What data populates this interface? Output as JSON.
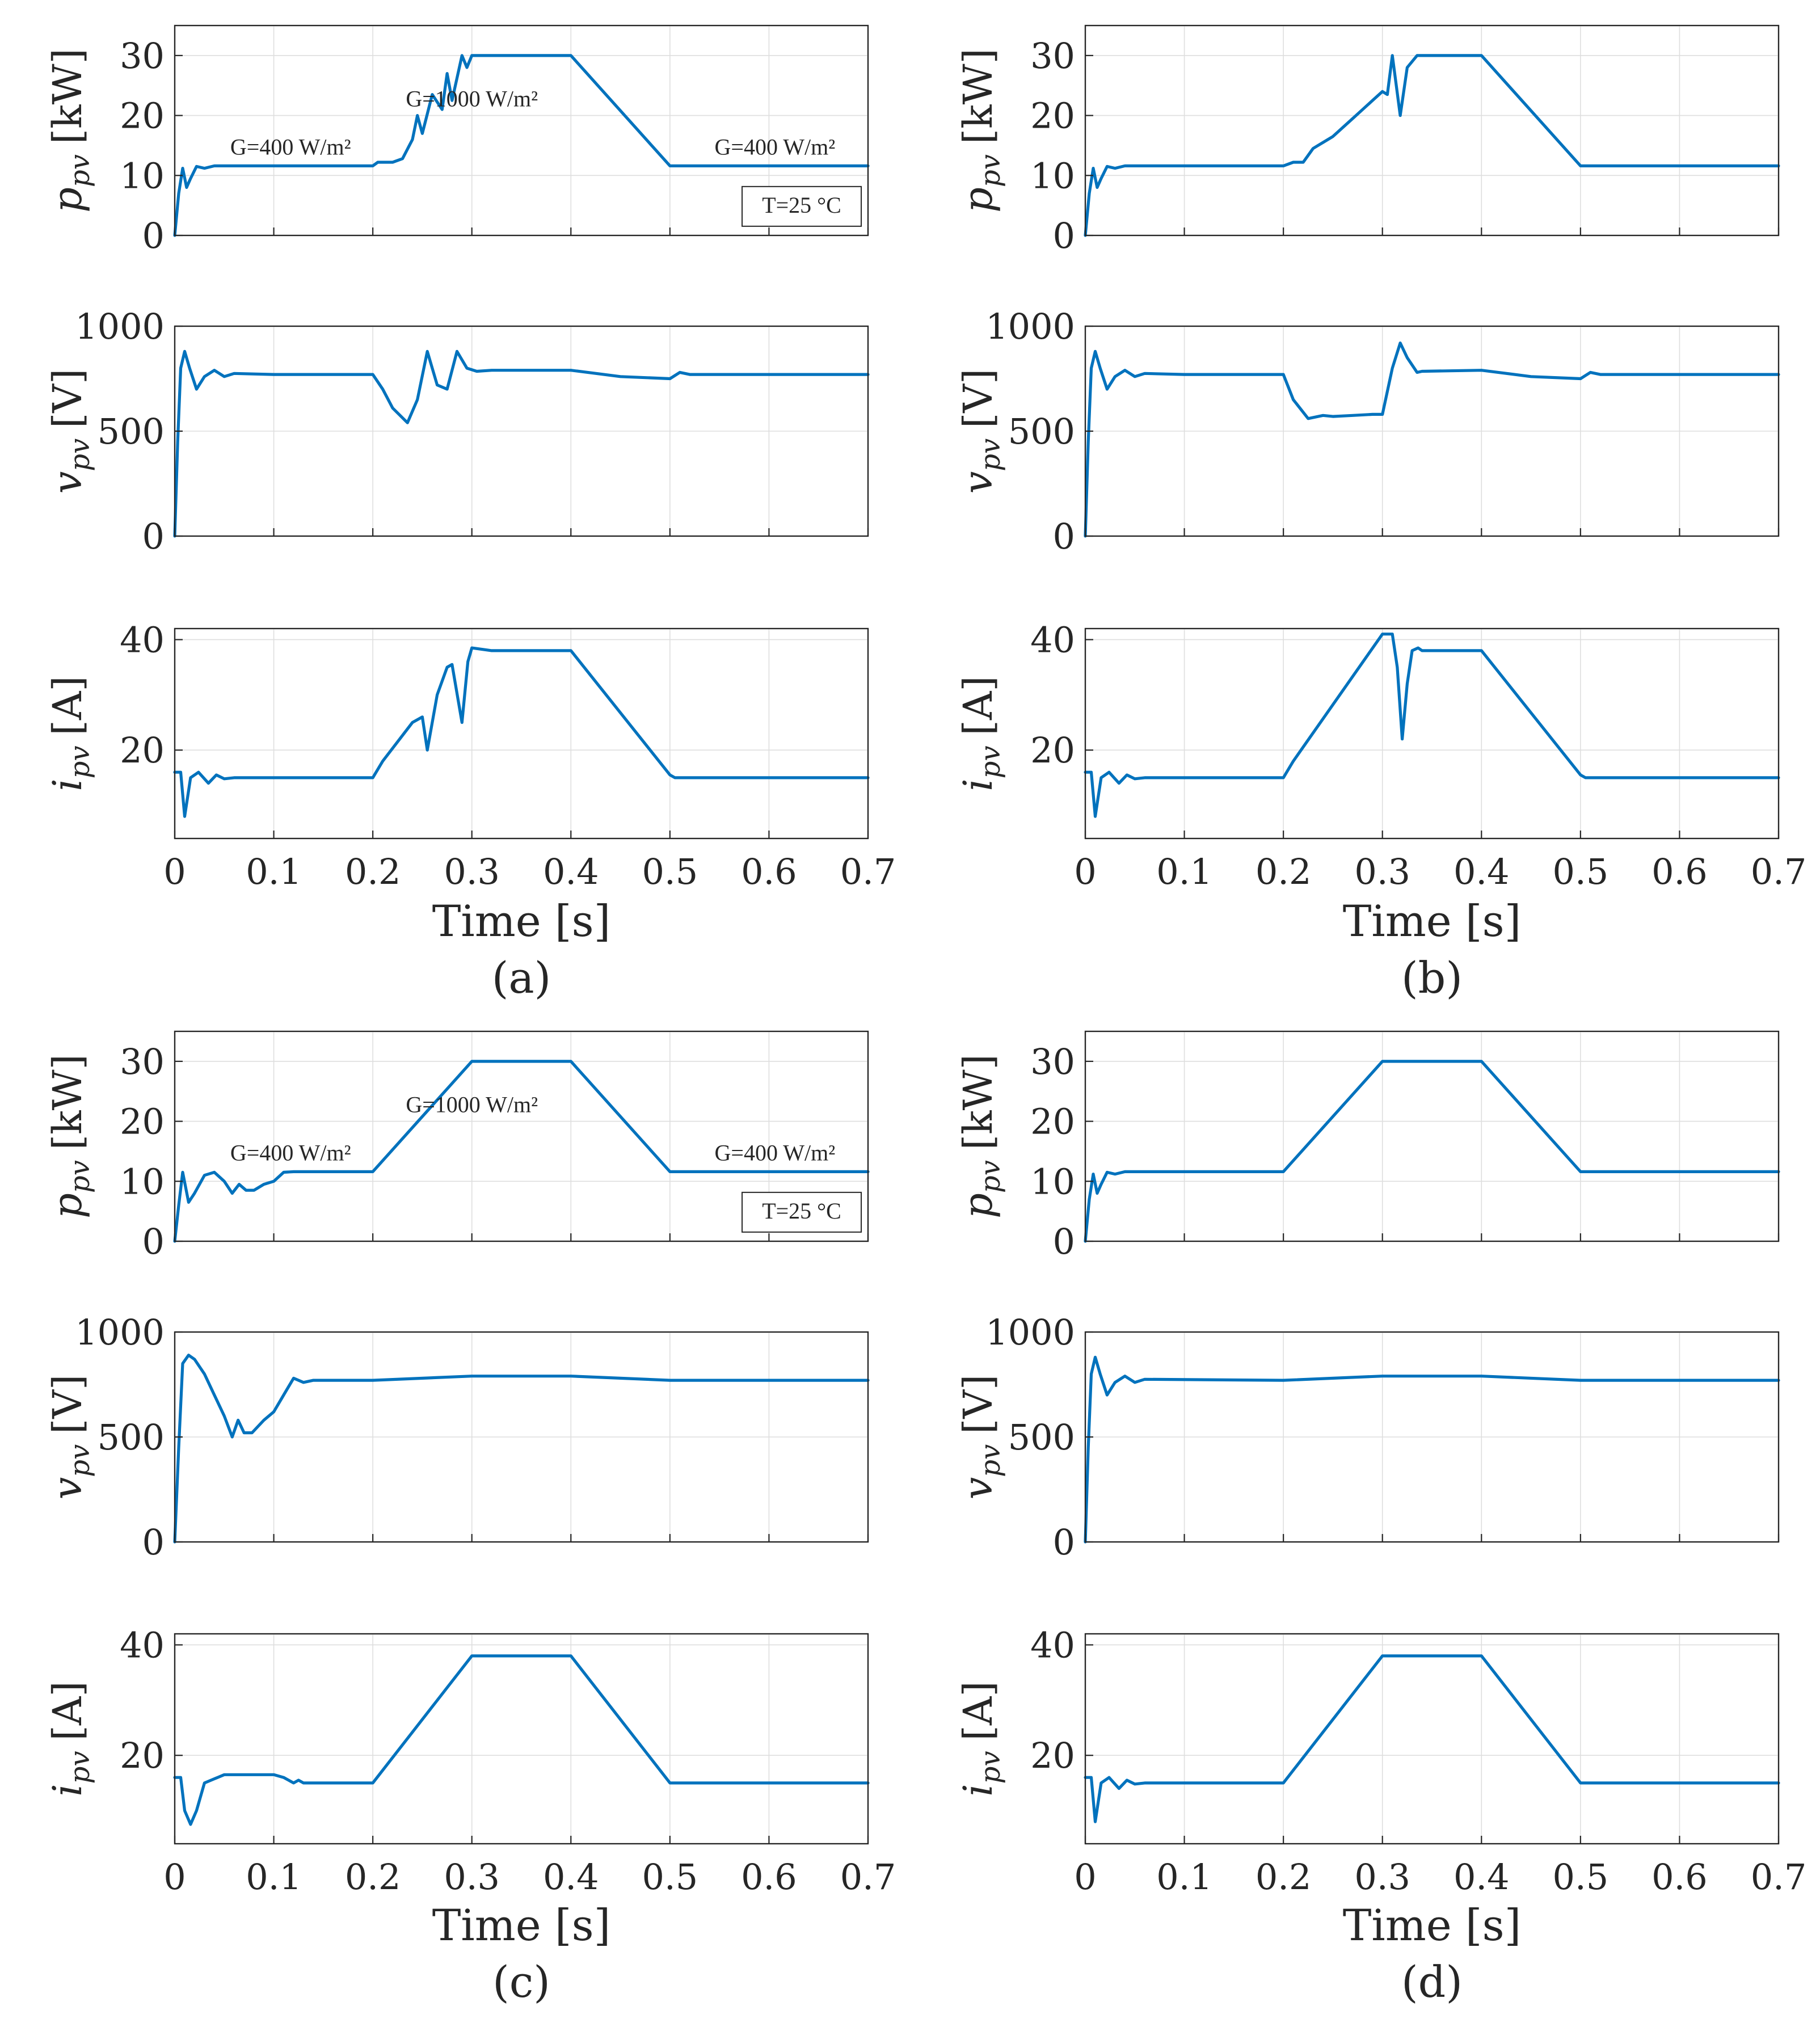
{
  "figure": {
    "captions": [
      "(a)",
      "(b)",
      "(c)",
      "(d)"
    ],
    "xlabel": "Time [s]"
  },
  "colors": {
    "series": "#0072BD",
    "axis": "#262626",
    "grid": "#dedede"
  },
  "chart_data": [
    {
      "panel": "(a)",
      "subplots": [
        {
          "type": "line",
          "ylabel_main": "p",
          "ylabel_sub": "pv",
          "ylabel_unit": "[kW]",
          "ylim": [
            0,
            35
          ],
          "yticks": [
            0,
            10,
            20,
            30
          ],
          "xlim": [
            0,
            0.7
          ],
          "xticks": [
            0,
            0.1,
            0.2,
            0.3,
            0.4,
            0.5,
            0.6,
            0.7
          ],
          "show_xtick_labels": false,
          "annotations": [
            "G=400 W/m²",
            "G=1000 W/m²",
            "G=400 W/m²",
            "T=25 °C"
          ],
          "x": [
            0,
            0.004,
            0.008,
            0.012,
            0.016,
            0.022,
            0.03,
            0.04,
            0.06,
            0.1,
            0.2,
            0.205,
            0.22,
            0.23,
            0.24,
            0.245,
            0.25,
            0.26,
            0.27,
            0.275,
            0.28,
            0.29,
            0.295,
            0.3,
            0.4,
            0.5,
            0.7
          ],
          "y": [
            0,
            7,
            11.2,
            8,
            9.5,
            11.5,
            11.2,
            11.6,
            11.6,
            11.6,
            11.6,
            12.2,
            12.2,
            12.8,
            16,
            20,
            17,
            23.5,
            21,
            27,
            22.5,
            30,
            28,
            30,
            30,
            11.6,
            11.6
          ]
        },
        {
          "type": "line",
          "ylabel_main": "v",
          "ylabel_sub": "pv",
          "ylabel_unit": "[V]",
          "ylim": [
            0,
            1000
          ],
          "yticks": [
            0,
            500,
            1000
          ],
          "xlim": [
            0,
            0.7
          ],
          "xticks": [
            0,
            0.1,
            0.2,
            0.3,
            0.4,
            0.5,
            0.6,
            0.7
          ],
          "show_xtick_labels": false,
          "x": [
            0,
            0.003,
            0.006,
            0.01,
            0.015,
            0.022,
            0.03,
            0.04,
            0.05,
            0.06,
            0.1,
            0.2,
            0.21,
            0.22,
            0.235,
            0.245,
            0.255,
            0.265,
            0.275,
            0.285,
            0.295,
            0.305,
            0.32,
            0.4,
            0.45,
            0.5,
            0.51,
            0.52,
            0.7
          ],
          "y": [
            0,
            450,
            800,
            880,
            800,
            700,
            760,
            790,
            760,
            775,
            770,
            770,
            700,
            610,
            540,
            650,
            880,
            720,
            700,
            880,
            800,
            785,
            790,
            790,
            760,
            750,
            780,
            770,
            770
          ]
        },
        {
          "type": "line",
          "ylabel_main": "i",
          "ylabel_sub": "pv",
          "ylabel_unit": "[A]",
          "ylim": [
            4,
            42
          ],
          "yticks": [
            20,
            40
          ],
          "xlim": [
            0,
            0.7
          ],
          "xticks": [
            0,
            0.1,
            0.2,
            0.3,
            0.4,
            0.5,
            0.6,
            0.7
          ],
          "show_xtick_labels": true,
          "x": [
            0,
            0.006,
            0.01,
            0.016,
            0.024,
            0.034,
            0.042,
            0.05,
            0.06,
            0.2,
            0.21,
            0.24,
            0.25,
            0.255,
            0.265,
            0.275,
            0.28,
            0.29,
            0.296,
            0.3,
            0.32,
            0.4,
            0.5,
            0.505,
            0.7
          ],
          "y": [
            16,
            16,
            8,
            15,
            16,
            14,
            15.5,
            14.8,
            15,
            15,
            18,
            25,
            26,
            20,
            30,
            35,
            35.5,
            25,
            36,
            38.5,
            38,
            38,
            15.5,
            15,
            15
          ]
        }
      ]
    },
    {
      "panel": "(b)",
      "subplots": [
        {
          "type": "line",
          "ylabel_main": "p",
          "ylabel_sub": "pv",
          "ylabel_unit": "[kW]",
          "ylim": [
            0,
            35
          ],
          "yticks": [
            0,
            10,
            20,
            30
          ],
          "xlim": [
            0,
            0.7
          ],
          "xticks": [
            0,
            0.1,
            0.2,
            0.3,
            0.4,
            0.5,
            0.6,
            0.7
          ],
          "show_xtick_labels": false,
          "x": [
            0,
            0.004,
            0.008,
            0.012,
            0.016,
            0.022,
            0.03,
            0.04,
            0.06,
            0.2,
            0.21,
            0.22,
            0.23,
            0.24,
            0.25,
            0.26,
            0.27,
            0.28,
            0.29,
            0.3,
            0.305,
            0.31,
            0.318,
            0.325,
            0.335,
            0.4,
            0.5,
            0.7
          ],
          "y": [
            0,
            7,
            11.2,
            8,
            9.5,
            11.5,
            11.2,
            11.6,
            11.6,
            11.6,
            12.2,
            12.2,
            14.5,
            15.5,
            16.5,
            18,
            19.5,
            21,
            22.5,
            24,
            23.5,
            30,
            20,
            28,
            30,
            30,
            11.6,
            11.6
          ]
        },
        {
          "type": "line",
          "ylabel_main": "v",
          "ylabel_sub": "pv",
          "ylabel_unit": "[V]",
          "ylim": [
            0,
            1000
          ],
          "yticks": [
            0,
            500,
            1000
          ],
          "xlim": [
            0,
            0.7
          ],
          "xticks": [
            0,
            0.1,
            0.2,
            0.3,
            0.4,
            0.5,
            0.6,
            0.7
          ],
          "show_xtick_labels": false,
          "x": [
            0,
            0.003,
            0.006,
            0.01,
            0.015,
            0.022,
            0.03,
            0.04,
            0.05,
            0.06,
            0.1,
            0.2,
            0.21,
            0.225,
            0.24,
            0.25,
            0.27,
            0.29,
            0.3,
            0.31,
            0.318,
            0.325,
            0.335,
            0.34,
            0.4,
            0.45,
            0.5,
            0.51,
            0.52,
            0.7
          ],
          "y": [
            0,
            450,
            800,
            880,
            800,
            700,
            760,
            790,
            760,
            775,
            770,
            770,
            650,
            560,
            575,
            570,
            575,
            580,
            580,
            800,
            920,
            850,
            780,
            785,
            790,
            760,
            750,
            780,
            770,
            770
          ]
        },
        {
          "type": "line",
          "ylabel_main": "i",
          "ylabel_sub": "pv",
          "ylabel_unit": "[A]",
          "ylim": [
            4,
            42
          ],
          "yticks": [
            20,
            40
          ],
          "xlim": [
            0,
            0.7
          ],
          "xticks": [
            0,
            0.1,
            0.2,
            0.3,
            0.4,
            0.5,
            0.6,
            0.7
          ],
          "show_xtick_labels": true,
          "x": [
            0,
            0.006,
            0.01,
            0.016,
            0.024,
            0.034,
            0.042,
            0.05,
            0.06,
            0.2,
            0.21,
            0.3,
            0.31,
            0.315,
            0.32,
            0.325,
            0.33,
            0.336,
            0.34,
            0.4,
            0.5,
            0.505,
            0.7
          ],
          "y": [
            16,
            16,
            8,
            15,
            16,
            14,
            15.5,
            14.8,
            15,
            15,
            18,
            41,
            41,
            35,
            22,
            32,
            38,
            38.5,
            38,
            38,
            15.5,
            15,
            15
          ]
        }
      ]
    },
    {
      "panel": "(c)",
      "subplots": [
        {
          "type": "line",
          "ylabel_main": "p",
          "ylabel_sub": "pv",
          "ylabel_unit": "[kW]",
          "ylim": [
            0,
            35
          ],
          "yticks": [
            0,
            10,
            20,
            30
          ],
          "xlim": [
            0,
            0.7
          ],
          "xticks": [
            0,
            0.1,
            0.2,
            0.3,
            0.4,
            0.5,
            0.6,
            0.7
          ],
          "show_xtick_labels": false,
          "annotations": [
            "G=400 W/m²",
            "G=1000 W/m²",
            "G=400 W/m²",
            "T=25 °C"
          ],
          "x": [
            0,
            0.004,
            0.008,
            0.014,
            0.02,
            0.03,
            0.04,
            0.05,
            0.058,
            0.065,
            0.072,
            0.08,
            0.09,
            0.1,
            0.11,
            0.12,
            0.13,
            0.2,
            0.3,
            0.4,
            0.5,
            0.7
          ],
          "y": [
            0,
            6,
            11.5,
            6.5,
            8,
            11,
            11.5,
            10,
            8,
            9.5,
            8.5,
            8.5,
            9.5,
            10,
            11.5,
            11.6,
            11.6,
            11.6,
            30,
            30,
            11.6,
            11.6
          ]
        },
        {
          "type": "line",
          "ylabel_main": "v",
          "ylabel_sub": "pv",
          "ylabel_unit": "[V]",
          "ylim": [
            0,
            1000
          ],
          "yticks": [
            0,
            500,
            1000
          ],
          "xlim": [
            0,
            0.7
          ],
          "xticks": [
            0,
            0.1,
            0.2,
            0.3,
            0.4,
            0.5,
            0.6,
            0.7
          ],
          "show_xtick_labels": false,
          "x": [
            0,
            0.004,
            0.008,
            0.014,
            0.02,
            0.03,
            0.04,
            0.05,
            0.058,
            0.064,
            0.07,
            0.078,
            0.09,
            0.1,
            0.11,
            0.12,
            0.13,
            0.14,
            0.2,
            0.3,
            0.4,
            0.5,
            0.7
          ],
          "y": [
            0,
            450,
            850,
            890,
            870,
            800,
            700,
            600,
            500,
            580,
            520,
            520,
            580,
            620,
            700,
            780,
            760,
            770,
            770,
            790,
            790,
            770,
            770
          ]
        },
        {
          "type": "line",
          "ylabel_main": "i",
          "ylabel_sub": "pv",
          "ylabel_unit": "[A]",
          "ylim": [
            4,
            42
          ],
          "yticks": [
            20,
            40
          ],
          "xlim": [
            0,
            0.7
          ],
          "xticks": [
            0,
            0.1,
            0.2,
            0.3,
            0.4,
            0.5,
            0.6,
            0.7
          ],
          "show_xtick_labels": true,
          "x": [
            0,
            0.006,
            0.01,
            0.016,
            0.022,
            0.03,
            0.05,
            0.1,
            0.11,
            0.12,
            0.125,
            0.13,
            0.2,
            0.3,
            0.4,
            0.5,
            0.7
          ],
          "y": [
            16,
            16,
            10,
            7.5,
            10,
            15,
            16.5,
            16.5,
            16,
            15,
            15.5,
            15,
            15,
            38,
            38,
            15,
            15
          ]
        }
      ]
    },
    {
      "panel": "(d)",
      "subplots": [
        {
          "type": "line",
          "ylabel_main": "p",
          "ylabel_sub": "pv",
          "ylabel_unit": "[kW]",
          "ylim": [
            0,
            35
          ],
          "yticks": [
            0,
            10,
            20,
            30
          ],
          "xlim": [
            0,
            0.7
          ],
          "xticks": [
            0,
            0.1,
            0.2,
            0.3,
            0.4,
            0.5,
            0.6,
            0.7
          ],
          "show_xtick_labels": false,
          "x": [
            0,
            0.004,
            0.008,
            0.012,
            0.016,
            0.022,
            0.03,
            0.04,
            0.06,
            0.2,
            0.3,
            0.4,
            0.5,
            0.7
          ],
          "y": [
            0,
            7,
            11.2,
            8,
            9.5,
            11.5,
            11.2,
            11.6,
            11.6,
            11.6,
            30,
            30,
            11.6,
            11.6
          ]
        },
        {
          "type": "line",
          "ylabel_main": "v",
          "ylabel_sub": "pv",
          "ylabel_unit": "[V]",
          "ylim": [
            0,
            1000
          ],
          "yticks": [
            0,
            500,
            1000
          ],
          "xlim": [
            0,
            0.7
          ],
          "xticks": [
            0,
            0.1,
            0.2,
            0.3,
            0.4,
            0.5,
            0.6,
            0.7
          ],
          "show_xtick_labels": false,
          "x": [
            0,
            0.003,
            0.006,
            0.01,
            0.015,
            0.022,
            0.03,
            0.04,
            0.05,
            0.06,
            0.2,
            0.3,
            0.4,
            0.5,
            0.7
          ],
          "y": [
            0,
            450,
            800,
            880,
            800,
            700,
            760,
            790,
            760,
            775,
            770,
            790,
            790,
            770,
            770
          ]
        },
        {
          "type": "line",
          "ylabel_main": "i",
          "ylabel_sub": "pv",
          "ylabel_unit": "[A]",
          "ylim": [
            4,
            42
          ],
          "yticks": [
            20,
            40
          ],
          "xlim": [
            0,
            0.7
          ],
          "xticks": [
            0,
            0.1,
            0.2,
            0.3,
            0.4,
            0.5,
            0.6,
            0.7
          ],
          "show_xtick_labels": true,
          "x": [
            0,
            0.006,
            0.01,
            0.016,
            0.024,
            0.034,
            0.042,
            0.05,
            0.06,
            0.2,
            0.3,
            0.4,
            0.5,
            0.7
          ],
          "y": [
            16,
            16,
            8,
            15,
            16,
            14,
            15.5,
            14.8,
            15,
            15,
            38,
            38,
            15,
            15
          ]
        }
      ]
    }
  ]
}
